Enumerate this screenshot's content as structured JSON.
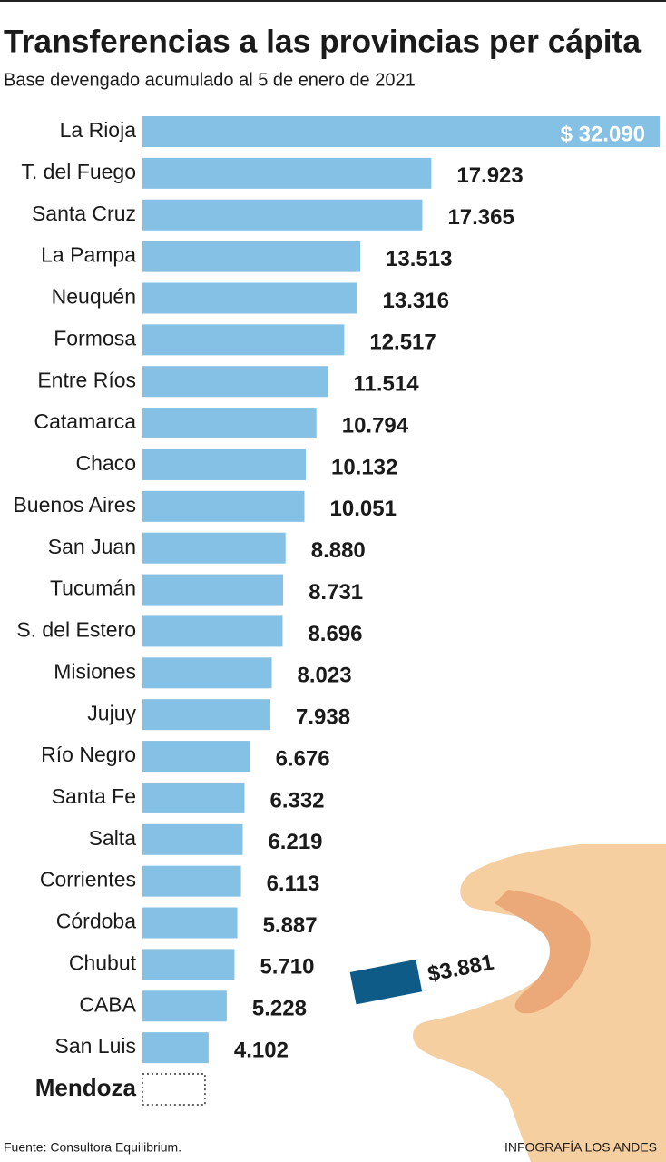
{
  "chart_data": {
    "type": "bar",
    "orientation": "horizontal",
    "title": "Transferencias a las provincias per cápita",
    "subtitle": "Base devengado acumulado al 5 de enero de 2021",
    "categories": [
      "La Rioja",
      "T. del Fuego",
      "Santa Cruz",
      "La Pampa",
      "Neuquén",
      "Formosa",
      "Entre Ríos",
      "Catamarca",
      "Chaco",
      "Buenos Aires",
      "San Juan",
      "Tucumán",
      "S. del Estero",
      "Misiones",
      "Jujuy",
      "Río Negro",
      "Santa Fe",
      "Salta",
      "Corrientes",
      "Córdoba",
      "Chubut",
      "CABA",
      "San Luis",
      "Mendoza"
    ],
    "values": [
      32090,
      17923,
      17365,
      13513,
      13316,
      12517,
      11514,
      10794,
      10132,
      10051,
      8880,
      8731,
      8696,
      8023,
      7938,
      6676,
      6332,
      6219,
      6113,
      5887,
      5710,
      5228,
      4102,
      3881
    ],
    "value_labels": [
      "$ 32.090",
      "17.923",
      "17.365",
      "13.513",
      "13.316",
      "12.517",
      "11.514",
      "10.794",
      "10.132",
      "10.051",
      "8.880",
      "8.731",
      "8.696",
      "8.023",
      "7.938",
      "6.676",
      "6.332",
      "6.219",
      "6.113",
      "5.887",
      "5.710",
      "5.228",
      "4.102",
      "$3.881"
    ],
    "color": "#85c1e4",
    "highlight": "Mendoza",
    "source": "Fuente: Consultora Equilibrium.",
    "credit": "INFOGRAFÍA LOS ANDES"
  }
}
